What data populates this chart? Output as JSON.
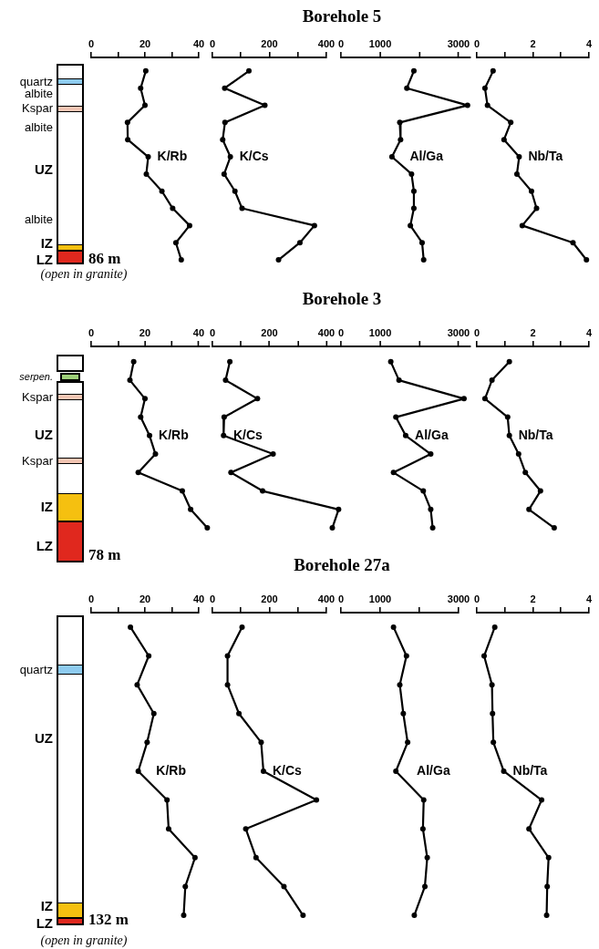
{
  "chart_data": [
    {
      "type": "other",
      "title": "Borehole 5",
      "annotations": [
        "quartz",
        "albite",
        "Kspar",
        "albite",
        "UZ",
        "albite",
        "IZ",
        "LZ",
        "86 m",
        "(open in granite)"
      ]
    },
    {
      "type": "line",
      "orientation": "horizontal",
      "tick_labels": "x",
      "marker": "circle",
      "line_style": "solid",
      "categories": [
        null,
        null,
        null,
        null,
        null,
        null,
        null,
        null,
        null,
        null,
        null,
        null
      ],
      "xlim": [
        0,
        40
      ],
      "xticks": [
        0,
        {
          "value": 10,
          "label": null
        },
        20,
        {
          "value": 30,
          "label": null
        },
        40
      ],
      "series": [
        {
          "name": "K/Rb",
          "color": "#000000",
          "values": [
            20.3,
            18.4,
            20,
            13.5,
            13.6,
            21.2,
            20.5,
            26.3,
            30.3,
            36.6,
            31.5,
            33.5
          ]
        }
      ]
    },
    {
      "type": "line",
      "orientation": "horizontal",
      "tick_labels": "x",
      "marker": "circle",
      "line_style": "solid",
      "categories": [
        null,
        null,
        null,
        null,
        null,
        null,
        null,
        null,
        null,
        null,
        null,
        null
      ],
      "xlim": [
        0,
        400
      ],
      "xticks": [
        0,
        {
          "value": 100,
          "label": null
        },
        200,
        {
          "value": 300,
          "label": null
        },
        400
      ],
      "series": [
        {
          "name": "K/Cs",
          "color": "#000000",
          "values": [
            128,
            43,
            184,
            44,
            36,
            63,
            41,
            79,
            104,
            358,
            307,
            232
          ]
        }
      ]
    },
    {
      "type": "line",
      "orientation": "horizontal",
      "tick_labels": "x",
      "marker": "circle",
      "line_style": "solid",
      "categories": [
        null,
        null,
        null,
        null,
        null,
        null,
        null,
        null,
        null,
        null,
        null,
        null
      ],
      "xlim": [
        0,
        3300
      ],
      "xticks": [
        0,
        1000,
        {
          "value": 2000,
          "label": null
        },
        3000
      ],
      "series": [
        {
          "name": "Al/Ga",
          "color": "#000000",
          "values": [
            1860,
            1680,
            3230,
            1500,
            1520,
            1300,
            1800,
            1860,
            1860,
            1770,
            2070,
            2110
          ]
        }
      ]
    },
    {
      "type": "line",
      "orientation": "horizontal",
      "tick_labels": "x",
      "marker": "circle",
      "line_style": "solid",
      "categories": [
        null,
        null,
        null,
        null,
        null,
        null,
        null,
        null,
        null,
        null,
        null,
        null
      ],
      "xlim": [
        0,
        4
      ],
      "xticks": [
        0,
        {
          "value": 1,
          "label": null
        },
        2,
        {
          "value": 3,
          "label": null
        },
        4
      ],
      "series": [
        {
          "name": "Nb/Ta",
          "color": "#000000",
          "values": [
            0.58,
            0.29,
            0.38,
            1.21,
            0.97,
            1.51,
            1.43,
            1.95,
            2.13,
            1.62,
            3.43,
            3.91
          ]
        }
      ]
    },
    {
      "type": "other",
      "title": "Borehole 3",
      "annotations": [
        "serpen.",
        "Kspar",
        "UZ",
        "Kspar",
        "IZ",
        "LZ",
        "78 m"
      ]
    },
    {
      "type": "line",
      "orientation": "horizontal",
      "tick_labels": "x",
      "marker": "circle",
      "line_style": "solid",
      "categories": [
        null,
        null,
        null,
        null,
        null,
        null,
        null,
        null,
        null,
        null
      ],
      "xlim": [
        0,
        44
      ],
      "xticks": [
        0,
        {
          "value": 10,
          "label": null
        },
        20,
        {
          "value": 30,
          "label": null
        },
        40
      ],
      "series": [
        {
          "name": "K/Rb",
          "color": "#000000",
          "values": [
            15.8,
            14.4,
            20,
            18.4,
            21.7,
            23.9,
            17.5,
            33.9,
            37,
            43.2
          ]
        }
      ]
    },
    {
      "type": "line",
      "orientation": "horizontal",
      "tick_labels": "x",
      "marker": "circle",
      "line_style": "solid",
      "categories": [
        null,
        null,
        null,
        null,
        null,
        null,
        null,
        null,
        null,
        null
      ],
      "xlim": [
        0,
        450
      ],
      "xticks": [
        0,
        {
          "value": 100,
          "label": null
        },
        200,
        {
          "value": 300,
          "label": null
        },
        400
      ],
      "series": [
        {
          "name": "K/Cs",
          "color": "#000000",
          "values": [
            61,
            46,
            158,
            41,
            39,
            213,
            65,
            176,
            443,
            421
          ]
        }
      ]
    },
    {
      "type": "line",
      "orientation": "horizontal",
      "tick_labels": "x",
      "marker": "circle",
      "line_style": "solid",
      "categories": [
        null,
        null,
        null,
        null,
        null,
        null,
        null,
        null,
        null,
        null
      ],
      "xlim": [
        0,
        3300
      ],
      "xticks": [
        0,
        1000,
        {
          "value": 2000,
          "label": null
        },
        3000
      ],
      "series": [
        {
          "name": "Al/Ga",
          "color": "#000000",
          "values": [
            1270,
            1480,
            3140,
            1400,
            1650,
            2290,
            1340,
            2100,
            2290,
            2340
          ]
        }
      ]
    },
    {
      "type": "line",
      "orientation": "horizontal",
      "tick_labels": "x",
      "marker": "circle",
      "line_style": "solid",
      "categories": [
        null,
        null,
        null,
        null,
        null,
        null,
        null,
        null,
        null,
        null
      ],
      "xlim": [
        0,
        4
      ],
      "xticks": [
        0,
        {
          "value": 1,
          "label": null
        },
        2,
        {
          "value": 3,
          "label": null
        },
        4
      ],
      "series": [
        {
          "name": "Nb/Ta",
          "color": "#000000",
          "values": [
            1.16,
            0.54,
            0.29,
            1.1,
            1.16,
            1.49,
            1.73,
            2.27,
            1.86,
            2.76
          ]
        }
      ]
    },
    {
      "type": "other",
      "title": "Borehole 27a",
      "annotations": [
        "quartz",
        "UZ",
        "IZ",
        "LZ",
        "132 m",
        "(open in granite)"
      ]
    },
    {
      "type": "line",
      "orientation": "horizontal",
      "tick_labels": "x",
      "marker": "circle",
      "line_style": "solid",
      "categories": [
        null,
        null,
        null,
        null,
        null,
        null,
        null,
        null,
        null,
        null,
        null
      ],
      "xlim": [
        0,
        40
      ],
      "xticks": [
        0,
        {
          "value": 10,
          "label": null
        },
        20,
        {
          "value": 30,
          "label": null
        },
        40
      ],
      "series": [
        {
          "name": "K/Rb",
          "color": "#000000",
          "values": [
            14.6,
            21.4,
            17.1,
            23.3,
            20.8,
            17.5,
            28.2,
            28.8,
            38.6,
            35,
            34.4
          ]
        }
      ]
    },
    {
      "type": "line",
      "orientation": "horizontal",
      "tick_labels": "x",
      "marker": "circle",
      "line_style": "solid",
      "categories": [
        null,
        null,
        null,
        null,
        null,
        null,
        null,
        null,
        null,
        null,
        null
      ],
      "xlim": [
        0,
        400
      ],
      "xticks": [
        0,
        {
          "value": 100,
          "label": null
        },
        200,
        {
          "value": 300,
          "label": null
        },
        400
      ],
      "series": [
        {
          "name": "K/Cs",
          "color": "#000000",
          "values": [
            104,
            53,
            53,
            93,
            171,
            179,
            365,
            117,
            153,
            251,
            318
          ]
        }
      ]
    },
    {
      "type": "line",
      "orientation": "horizontal",
      "tick_labels": "x",
      "marker": "circle",
      "line_style": "solid",
      "categories": [
        null,
        null,
        null,
        null,
        null,
        null,
        null,
        null,
        null,
        null,
        null
      ],
      "xlim": [
        0,
        3000
      ],
      "xticks": [
        0,
        1000,
        {
          "value": 2000,
          "label": null
        },
        3000
      ],
      "series": [
        {
          "name": "Al/Ga",
          "color": "#000000",
          "values": [
            1340,
            1670,
            1500,
            1590,
            1700,
            1400,
            2110,
            2090,
            2200,
            2140,
            1870
          ]
        }
      ]
    },
    {
      "type": "line",
      "orientation": "horizontal",
      "tick_labels": "x",
      "marker": "circle",
      "line_style": "solid",
      "categories": [
        null,
        null,
        null,
        null,
        null,
        null,
        null,
        null,
        null,
        null,
        null
      ],
      "xlim": [
        0,
        4
      ],
      "xticks": [
        0,
        {
          "value": 1,
          "label": null
        },
        2,
        {
          "value": 3,
          "label": null
        },
        4
      ],
      "series": [
        {
          "name": "Nb/Ta",
          "color": "#000000",
          "values": [
            0.64,
            0.26,
            0.54,
            0.56,
            0.59,
            0.96,
            2.31,
            1.86,
            2.56,
            2.51,
            2.49
          ]
        }
      ]
    }
  ]
}
